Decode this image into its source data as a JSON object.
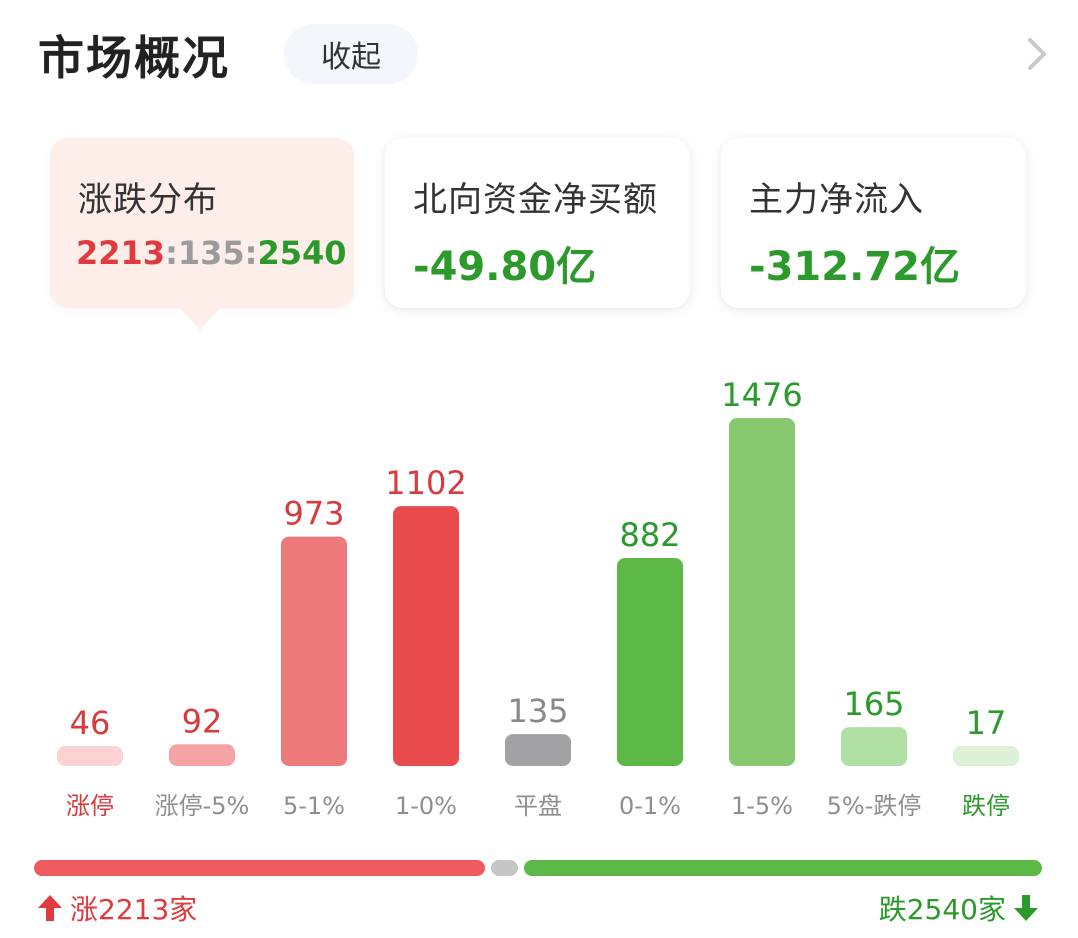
{
  "header": {
    "title": "市场概况",
    "collapse_label": "收起"
  },
  "cards": [
    {
      "label": "涨跌分布",
      "rise": "2213",
      "sep1": ":",
      "flat": "135",
      "sep2": ":",
      "fall": "2540"
    },
    {
      "label": "北向资金净买额",
      "value": "-49.80亿"
    },
    {
      "label": "主力净流入",
      "value": "-312.72亿"
    }
  ],
  "colors": {
    "red": "#e03a3e",
    "green": "#2b9a2b",
    "gray": "#9b9b9b"
  },
  "chart_data": {
    "type": "bar",
    "categories": [
      "涨停",
      "涨停-5%",
      "5-1%",
      "1-0%",
      "平盘",
      "0-1%",
      "1-5%",
      "5%-跌停",
      "跌停"
    ],
    "values": [
      46,
      92,
      973,
      1102,
      135,
      882,
      1476,
      165,
      17
    ],
    "bar_colors": [
      "#fbd3d3",
      "#f5a3a5",
      "#ef7a7c",
      "#e94a4d",
      "#a2a2a4",
      "#5cb947",
      "#86c96f",
      "#b1e0a4",
      "#dcf1d6"
    ],
    "value_colors": [
      "#d83a3d",
      "#d83a3d",
      "#d83a3d",
      "#d83a3d",
      "#888888",
      "#2b9a2b",
      "#2b9a2b",
      "#2b9a2b",
      "#2b9a2b"
    ],
    "label_colors": [
      "#d83a3d",
      "#8f8f8f",
      "#8f8f8f",
      "#8f8f8f",
      "#8f8f8f",
      "#8f8f8f",
      "#8f8f8f",
      "#8f8f8f",
      "#2b9a2b"
    ],
    "xlabel": "",
    "ylabel": ""
  },
  "summary": {
    "rise_count": 2213,
    "flat_count": 135,
    "fall_count": 2540,
    "rise_label": "涨2213家",
    "fall_label": "跌2540家"
  }
}
